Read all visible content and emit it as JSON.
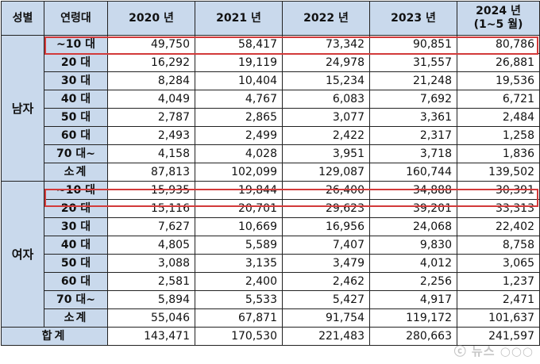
{
  "header": {
    "gender": "성별",
    "age_group": "연령대",
    "years": [
      "2020 년",
      "2021 년",
      "2022 년",
      "2023 년"
    ],
    "last_year_line1": "2024 년",
    "last_year_line2": "(1~5 월)"
  },
  "groups": [
    {
      "gender": "남자",
      "rows": [
        {
          "age": "~10 대",
          "values": [
            "49,750",
            "58,417",
            "73,342",
            "90,851",
            "80,786"
          ]
        },
        {
          "age": "20 대",
          "values": [
            "16,292",
            "19,119",
            "24,978",
            "31,557",
            "26,881"
          ]
        },
        {
          "age": "30 대",
          "values": [
            "8,284",
            "10,404",
            "15,234",
            "21,248",
            "19,536"
          ]
        },
        {
          "age": "40 대",
          "values": [
            "4,049",
            "4,767",
            "6,083",
            "7,692",
            "6,721"
          ]
        },
        {
          "age": "50 대",
          "values": [
            "2,787",
            "2,865",
            "3,077",
            "3,361",
            "2,484"
          ]
        },
        {
          "age": "60 대",
          "values": [
            "2,493",
            "2,499",
            "2,422",
            "2,317",
            "1,258"
          ]
        },
        {
          "age": "70 대~",
          "values": [
            "4,158",
            "4,028",
            "3,951",
            "3,718",
            "1,836"
          ]
        }
      ],
      "subtotal": {
        "label": "소계",
        "values": [
          "87,813",
          "102,099",
          "129,087",
          "160,744",
          "139,502"
        ]
      }
    },
    {
      "gender": "여자",
      "rows": [
        {
          "age": "~10 대",
          "values": [
            "15,935",
            "19,844",
            "26,400",
            "34,888",
            "30,391"
          ]
        },
        {
          "age": "20 대",
          "values": [
            "15,116",
            "20,701",
            "29,623",
            "39,201",
            "33,313"
          ]
        },
        {
          "age": "30 대",
          "values": [
            "7,627",
            "10,669",
            "16,956",
            "24,068",
            "22,402"
          ]
        },
        {
          "age": "40 대",
          "values": [
            "4,805",
            "5,589",
            "7,407",
            "9,830",
            "8,758"
          ]
        },
        {
          "age": "50 대",
          "values": [
            "3,088",
            "3,135",
            "3,479",
            "4,012",
            "3,065"
          ]
        },
        {
          "age": "60 대",
          "values": [
            "2,581",
            "2,400",
            "2,462",
            "2,256",
            "1,237"
          ]
        },
        {
          "age": "70 대~",
          "values": [
            "5,894",
            "5,533",
            "5,427",
            "4,917",
            "2,471"
          ]
        }
      ],
      "subtotal": {
        "label": "소계",
        "values": [
          "55,046",
          "67,871",
          "91,754",
          "119,172",
          "101,637"
        ]
      }
    }
  ],
  "total": {
    "label": "합계",
    "values": [
      "143,471",
      "170,530",
      "221,483",
      "280,663",
      "241,597"
    ]
  },
  "highlight_color": "#d23a3a",
  "header_bg": "#c9d9ec"
}
